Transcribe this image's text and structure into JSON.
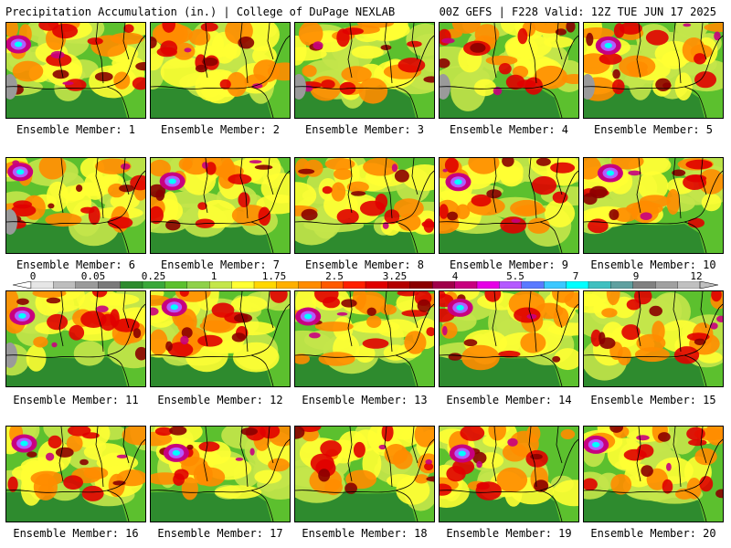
{
  "header": {
    "left": "Precipitation Accumulation (in.) | College of DuPage NEXLAB",
    "right": "00Z GEFS | F228 Valid: 12Z TUE JUN 17 2025"
  },
  "members": [
    "Ensemble Member: 1",
    "Ensemble Member: 2",
    "Ensemble Member: 3",
    "Ensemble Member: 4",
    "Ensemble Member: 5",
    "Ensemble Member: 6",
    "Ensemble Member: 7",
    "Ensemble Member: 8",
    "Ensemble Member: 9",
    "Ensemble Member: 10",
    "Ensemble Member: 11",
    "Ensemble Member: 12",
    "Ensemble Member: 13",
    "Ensemble Member: 14",
    "Ensemble Member: 15",
    "Ensemble Member: 16",
    "Ensemble Member: 17",
    "Ensemble Member: 18",
    "Ensemble Member: 19",
    "Ensemble Member: 20"
  ],
  "legend": {
    "labels": [
      "0",
      "0.05",
      "0.25",
      "1",
      "1.75",
      "2.5",
      "3.25",
      "4",
      "5.5",
      "7",
      "9",
      "12"
    ],
    "colors": [
      "#e6e6e6",
      "#bdbdbd",
      "#9a9a9a",
      "#7a7a7a",
      "#2e8b2e",
      "#3aa83a",
      "#5cc02e",
      "#8fd14a",
      "#c4e64a",
      "#ffff33",
      "#ffd700",
      "#ffb000",
      "#ff8c00",
      "#ff5a00",
      "#ff2000",
      "#e00000",
      "#b40000",
      "#8b0000",
      "#a0004a",
      "#c8007f",
      "#e600e6",
      "#b45aff",
      "#5a7aff",
      "#3cc8ff",
      "#00ffff",
      "#40c0c0",
      "#60a0a0",
      "#808080",
      "#a0a0a0",
      "#c0c0c0"
    ]
  },
  "palette": {
    "dry": "#2e8b2e",
    "light": "#5cc02e",
    "moderate": "#c4e64a",
    "yellow": "#ffff33",
    "orange": "#ff8c00",
    "red": "#e00000",
    "darkred": "#8b0000",
    "magenta": "#c8007f",
    "purple": "#b45aff",
    "cyan": "#00ffff",
    "gray": "#9a9a9a"
  }
}
